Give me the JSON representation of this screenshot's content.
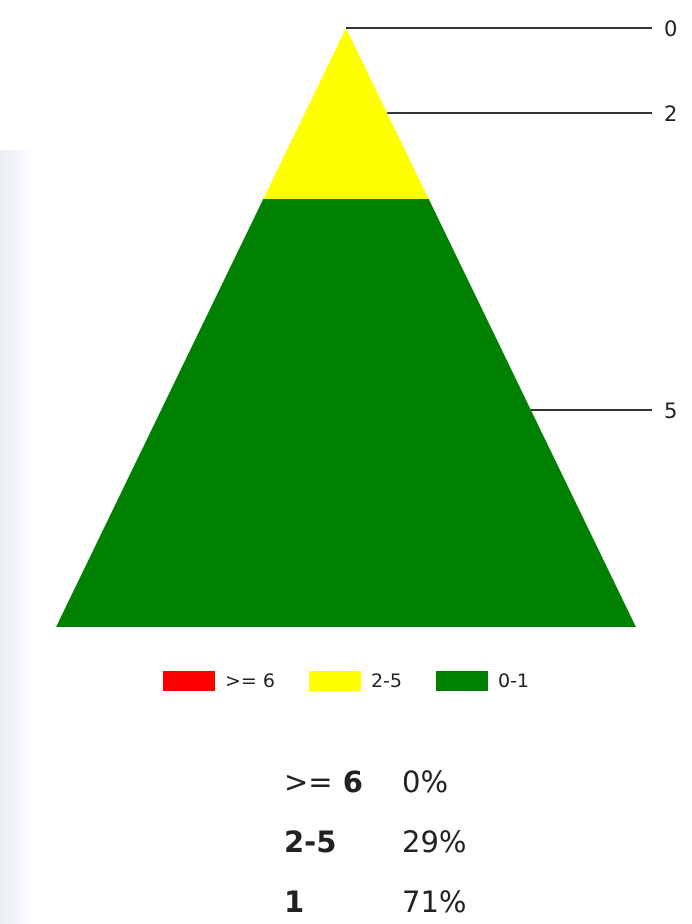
{
  "chart_data": {
    "type": "pyramid",
    "levels": [
      {
        "name": ">= 6",
        "value": 0,
        "color": "#ff0000"
      },
      {
        "name": "2-5",
        "value": 2,
        "color": "#ffff00"
      },
      {
        "name": "0-1",
        "value": 5,
        "color": "#008000"
      }
    ],
    "scale_ticks": [
      "0",
      "2",
      "5"
    ],
    "legend": {
      "placement": "bottom",
      "items": [
        {
          "label": ">= 6",
          "color": "#ff0000"
        },
        {
          "label": "2-5",
          "color": "#ffff00"
        },
        {
          "label": "0-1",
          "color": "#008000"
        }
      ]
    }
  },
  "summary": [
    {
      "op": ">=",
      "bold": "6",
      "value": "0%"
    },
    {
      "op": "",
      "bold": "2-5",
      "value": "29%"
    },
    {
      "op": "",
      "bold": "1",
      "value": "71%"
    }
  ]
}
